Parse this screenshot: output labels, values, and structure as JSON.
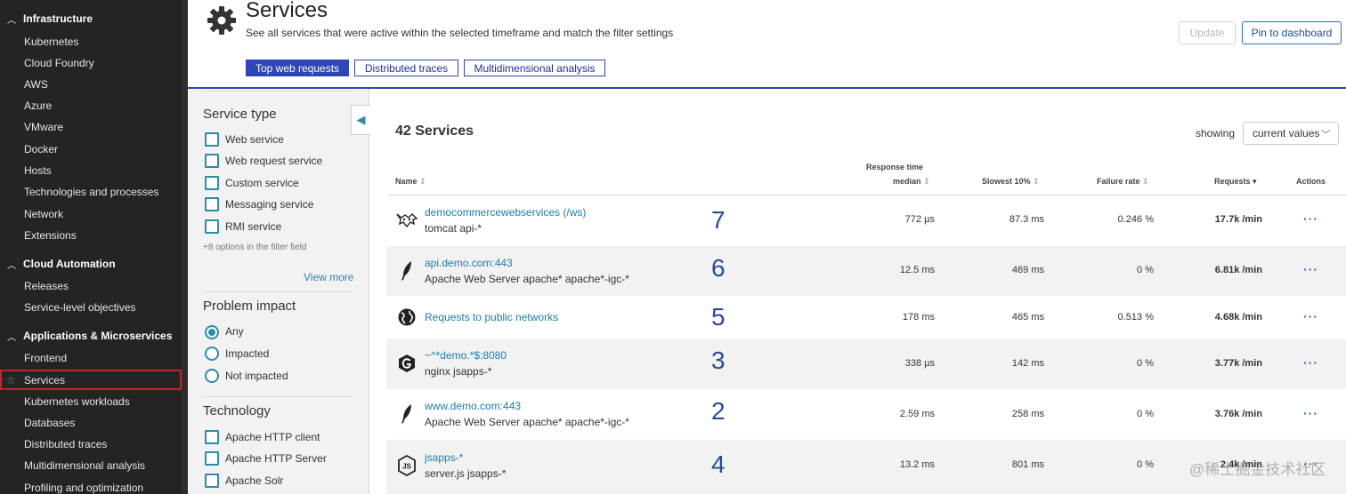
{
  "nav": {
    "sections": [
      {
        "label": "Infrastructure",
        "items": [
          "Kubernetes",
          "Cloud Foundry",
          "AWS",
          "Azure",
          "VMware",
          "Docker",
          "Hosts",
          "Technologies and processes",
          "Network",
          "Extensions"
        ]
      },
      {
        "label": "Cloud Automation",
        "items": [
          "Releases",
          "Service-level objectives"
        ]
      },
      {
        "label": "Applications & Microservices",
        "items": [
          "Frontend",
          "Services",
          "Kubernetes workloads",
          "Databases",
          "Distributed traces",
          "Multidimensional analysis",
          "Profiling and optimization"
        ]
      }
    ],
    "active_item": "Services"
  },
  "header": {
    "title": "Services",
    "subtitle": "See all services that were active within the selected timeframe and match the filter settings",
    "update_label": "Update",
    "pin_label": "Pin to dashboard",
    "tabs": [
      "Top web requests",
      "Distributed traces",
      "Multidimensional analysis"
    ],
    "active_tab": "Top web requests"
  },
  "filter": {
    "service_type": {
      "heading": "Service type",
      "options": [
        "Web service",
        "Web request service",
        "Custom service",
        "Messaging service",
        "RMI service"
      ],
      "hint": "+8 options in the filter field",
      "view_more": "View more"
    },
    "problem_impact": {
      "heading": "Problem impact",
      "options": [
        "Any",
        "Impacted",
        "Not impacted"
      ],
      "selected": "Any"
    },
    "technology": {
      "heading": "Technology",
      "options": [
        "Apache HTTP client",
        "Apache HTTP Server",
        "Apache Solr"
      ]
    }
  },
  "services": {
    "count_title": "42 Services",
    "showing_label": "showing",
    "showing_value": "current values",
    "columns": {
      "name": "Name",
      "response_line1": "Response time",
      "response_line2": "median",
      "slowest": "Slowest 10%",
      "failure": "Failure rate",
      "requests": "Requests",
      "actions": "Actions"
    },
    "rows": [
      {
        "icon": "tomcat-icon",
        "name": "democommercewebservices (/ws)",
        "sub": "tomcat api-*",
        "rank": "7",
        "median": "772 µs",
        "slowest": "87.3 ms",
        "failure": "0.246 %",
        "requests": "17.7k /min"
      },
      {
        "icon": "apache-feather-icon",
        "name": "api.demo.com:443",
        "sub": "Apache Web Server apache* apache*-igc-*",
        "rank": "6",
        "median": "12.5 ms",
        "slowest": "469 ms",
        "failure": "0 %",
        "requests": "6.81k /min"
      },
      {
        "icon": "globe-icon",
        "name": "Requests to public networks",
        "sub": "",
        "rank": "5",
        "median": "178 ms",
        "slowest": "465 ms",
        "failure": "0.513 %",
        "requests": "4.68k /min"
      },
      {
        "icon": "nginx-icon",
        "name": "~^*demo.*$:8080",
        "sub": "nginx jsapps-*",
        "rank": "3",
        "median": "338 µs",
        "slowest": "142 ms",
        "failure": "0 %",
        "requests": "3.77k /min"
      },
      {
        "icon": "apache-feather-icon",
        "name": "www.demo.com:443",
        "sub": "Apache Web Server apache* apache*-igc-*",
        "rank": "2",
        "median": "2.59 ms",
        "slowest": "258 ms",
        "failure": "0 %",
        "requests": "3.76k /min"
      },
      {
        "icon": "nodejs-icon",
        "name": "jsapps-*",
        "sub": "server.js jsapps-*",
        "rank": "4",
        "median": "13.2 ms",
        "slowest": "801 ms",
        "failure": "0 %",
        "requests": "2.4k /min"
      }
    ]
  },
  "watermark": "@稀土掘金技术社区",
  "colors": {
    "nav_bg": "#242424",
    "accent": "#3045b8",
    "link": "#1b7caa",
    "checkbox": "#2d8aab",
    "rank": "#2a4a9b",
    "active_outline": "#c0272d"
  }
}
